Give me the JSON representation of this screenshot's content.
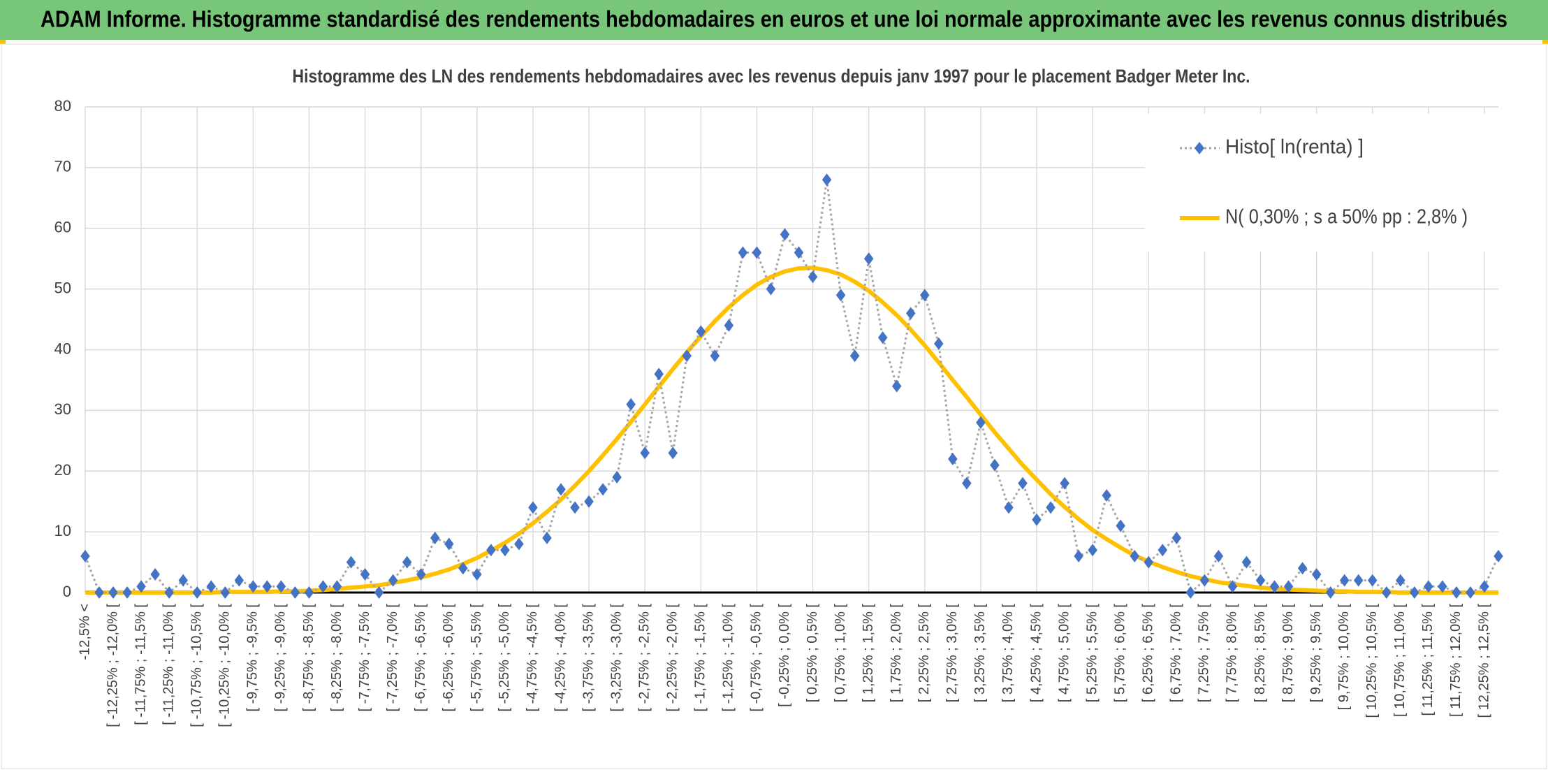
{
  "header": {
    "title": "ADAM Informe. Histogramme standardisé des rendements hebdomadaires en euros et une loi normale approximante avec les revenus connus distribués"
  },
  "chart_data": {
    "type": "line",
    "title": "Histogramme des LN des rendements hebdomadaires avec les revenus depuis janv 1997 pour le placement Badger Meter Inc.",
    "categories": [
      "-12,5% <",
      null,
      "[ -12,25% ; -12,0% [",
      null,
      "[ -11,75% ; -11,5% [",
      null,
      "[ -11,25% ; -11,0% [",
      null,
      "[ -10,75% ; -10,5% [",
      null,
      "[ -10,25% ; -10,0% [",
      null,
      "[ -9,75% ; -9,5% [",
      null,
      "[ -9,25% ; -9,0% [",
      null,
      "[ -8,75% ; -8,5% [",
      null,
      "[ -8,25% ; -8,0% [",
      null,
      "[ -7,75% ; -7,5% [",
      null,
      "[ -7,25% ; -7,0% [",
      null,
      "[ -6,75% ; -6,5% [",
      null,
      "[ -6,25% ; -6,0% [",
      null,
      "[ -5,75% ; -5,5% [",
      null,
      "[ -5,25% ; -5,0% [",
      null,
      "[ -4,75% ; -4,5% [",
      null,
      "[ -4,25% ; -4,0% [",
      null,
      "[ -3,75% ; -3,5% [",
      null,
      "[ -3,25% ; -3,0% [",
      null,
      "[ -2,75% ; -2,5% [",
      null,
      "[ -2,25% ; -2,0% [",
      null,
      "[ -1,75% ; -1,5% [",
      null,
      "[ -1,25% ; -1,0% [",
      null,
      "[ -0,75% ; -0,5% [",
      null,
      "[ -0,25% ; 0,0% [",
      null,
      "[ 0,25% ; 0,5% [",
      null,
      "[ 0,75% ; 1,0% [",
      null,
      "[ 1,25% ; 1,5% [",
      null,
      "[ 1,75% ; 2,0% [",
      null,
      "[ 2,25% ; 2,5% [",
      null,
      "[ 2,75% ; 3,0% [",
      null,
      "[ 3,25% ; 3,5% [",
      null,
      "[ 3,75% ; 4,0% [",
      null,
      "[ 4,25% ; 4,5% [",
      null,
      "[ 4,75% ; 5,0% [",
      null,
      "[ 5,25% ; 5,5% [",
      null,
      "[ 5,75% ; 6,0% [",
      null,
      "[ 6,25% ; 6,5% [",
      null,
      "[ 6,75% ; 7,0% [",
      null,
      "[ 7,25% ; 7,5% [",
      null,
      "[ 7,75% ; 8,0% [",
      null,
      "[ 8,25% ; 8,5% [",
      null,
      "[ 8,75% ; 9,0% [",
      null,
      "[ 9,25% ; 9,5% [",
      null,
      "[ 9,75% ; 10,0% [",
      null,
      "[ 10,25% ; 10,5% [",
      null,
      "[ 10,75% ; 11,0% [",
      null,
      "[ 11,25% ; 11,5% [",
      null,
      "[ 11,75% ; 12,0% [",
      null,
      "[ 12,25% ; 12,5% [",
      null
    ],
    "series": [
      {
        "name": "Histo[ ln(renta) ]",
        "color": "#4472c4",
        "line_color": "#a5a5a5",
        "line_style": "dotted",
        "marker": "diamond",
        "values": [
          6,
          0,
          0,
          0,
          1,
          3,
          0,
          2,
          0,
          1,
          0,
          2,
          1,
          1,
          1,
          0,
          0,
          1,
          1,
          5,
          3,
          0,
          2,
          5,
          3,
          9,
          8,
          4,
          3,
          7,
          7,
          8,
          14,
          9,
          17,
          14,
          15,
          17,
          19,
          31,
          23,
          36,
          23,
          39,
          43,
          39,
          44,
          56,
          56,
          50,
          59,
          56,
          52,
          68,
          49,
          39,
          55,
          42,
          34,
          46,
          49,
          41,
          22,
          18,
          28,
          21,
          14,
          18,
          12,
          14,
          18,
          6,
          7,
          16,
          11,
          6,
          5,
          7,
          9,
          0,
          2,
          6,
          1,
          5,
          2,
          1,
          1,
          4,
          3,
          0,
          2,
          2,
          2,
          0,
          2,
          0,
          1,
          1,
          0,
          0,
          1,
          6
        ]
      },
      {
        "name": "N( 0,30% ; s a 50% pp : 2,8% )",
        "color": "#ffc000",
        "line_style": "solid",
        "marker": "none",
        "values": [
          0,
          0,
          0,
          0,
          0,
          0,
          0,
          0,
          0,
          0,
          0.1,
          0.1,
          0.1,
          0.1,
          0.2,
          0.2,
          0.3,
          0.4,
          0.6,
          0.8,
          1.0,
          1.2,
          1.6,
          2.0,
          2.5,
          3.1,
          3.8,
          4.7,
          5.7,
          6.9,
          8.2,
          9.7,
          11.4,
          13.3,
          15.3,
          17.6,
          20.0,
          22.6,
          25.3,
          28.1,
          31.0,
          33.9,
          36.8,
          39.6,
          42.2,
          44.7,
          47.0,
          49.0,
          50.7,
          52.0,
          52.9,
          53.4,
          53.5,
          53.1,
          52.4,
          51.2,
          49.7,
          47.8,
          45.7,
          43.3,
          40.7,
          37.9,
          35.0,
          32.2,
          29.3,
          26.4,
          23.7,
          21.0,
          18.6,
          16.2,
          14.1,
          12.1,
          10.3,
          8.8,
          7.4,
          6.1,
          5.1,
          4.2,
          3.4,
          2.7,
          2.2,
          1.7,
          1.4,
          1.1,
          0.8,
          0.6,
          0.5,
          0.4,
          0.3,
          0.2,
          0.2,
          0.1,
          0.1,
          0.1,
          0,
          0,
          0,
          0,
          0,
          0,
          0,
          0
        ]
      }
    ],
    "ylim": [
      0,
      80
    ],
    "yticks": [
      0,
      10,
      20,
      30,
      40,
      50,
      60,
      70,
      80
    ],
    "grid": true,
    "legend": "top-right"
  }
}
